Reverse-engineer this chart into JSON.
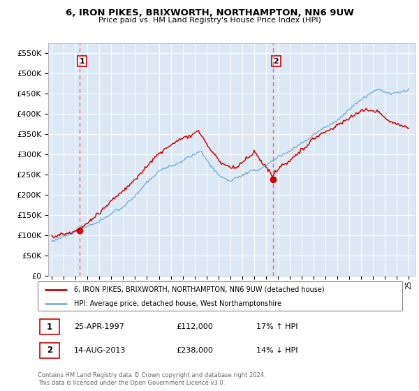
{
  "title1": "6, IRON PIKES, BRIXWORTH, NORTHAMPTON, NN6 9UW",
  "title2": "Price paid vs. HM Land Registry's House Price Index (HPI)",
  "ylim": [
    0,
    575000
  ],
  "yticks": [
    0,
    50000,
    100000,
    150000,
    200000,
    250000,
    300000,
    350000,
    400000,
    450000,
    500000,
    550000
  ],
  "xlim_start": 1994.7,
  "xlim_end": 2025.5,
  "sale1_x": 1997.32,
  "sale1_y": 112000,
  "sale2_x": 2013.62,
  "sale2_y": 238000,
  "legend_line1": "6, IRON PIKES, BRIXWORTH, NORTHAMPTON, NN6 9UW (detached house)",
  "legend_line2": "HPI: Average price, detached house, West Northamptonshire",
  "table_row1_num": "1",
  "table_row1_date": "25-APR-1997",
  "table_row1_price": "£112,000",
  "table_row1_hpi": "17% ↑ HPI",
  "table_row2_num": "2",
  "table_row2_date": "14-AUG-2013",
  "table_row2_price": "£238,000",
  "table_row2_hpi": "14% ↓ HPI",
  "footnote": "Contains HM Land Registry data © Crown copyright and database right 2024.\nThis data is licensed under the Open Government Licence v3.0.",
  "red_line_color": "#cc0000",
  "blue_line_color": "#7ab0d4",
  "dashed_line_color": "#ff6666",
  "plot_bg_color": "#dce9f5",
  "grid_color": "#ffffff"
}
